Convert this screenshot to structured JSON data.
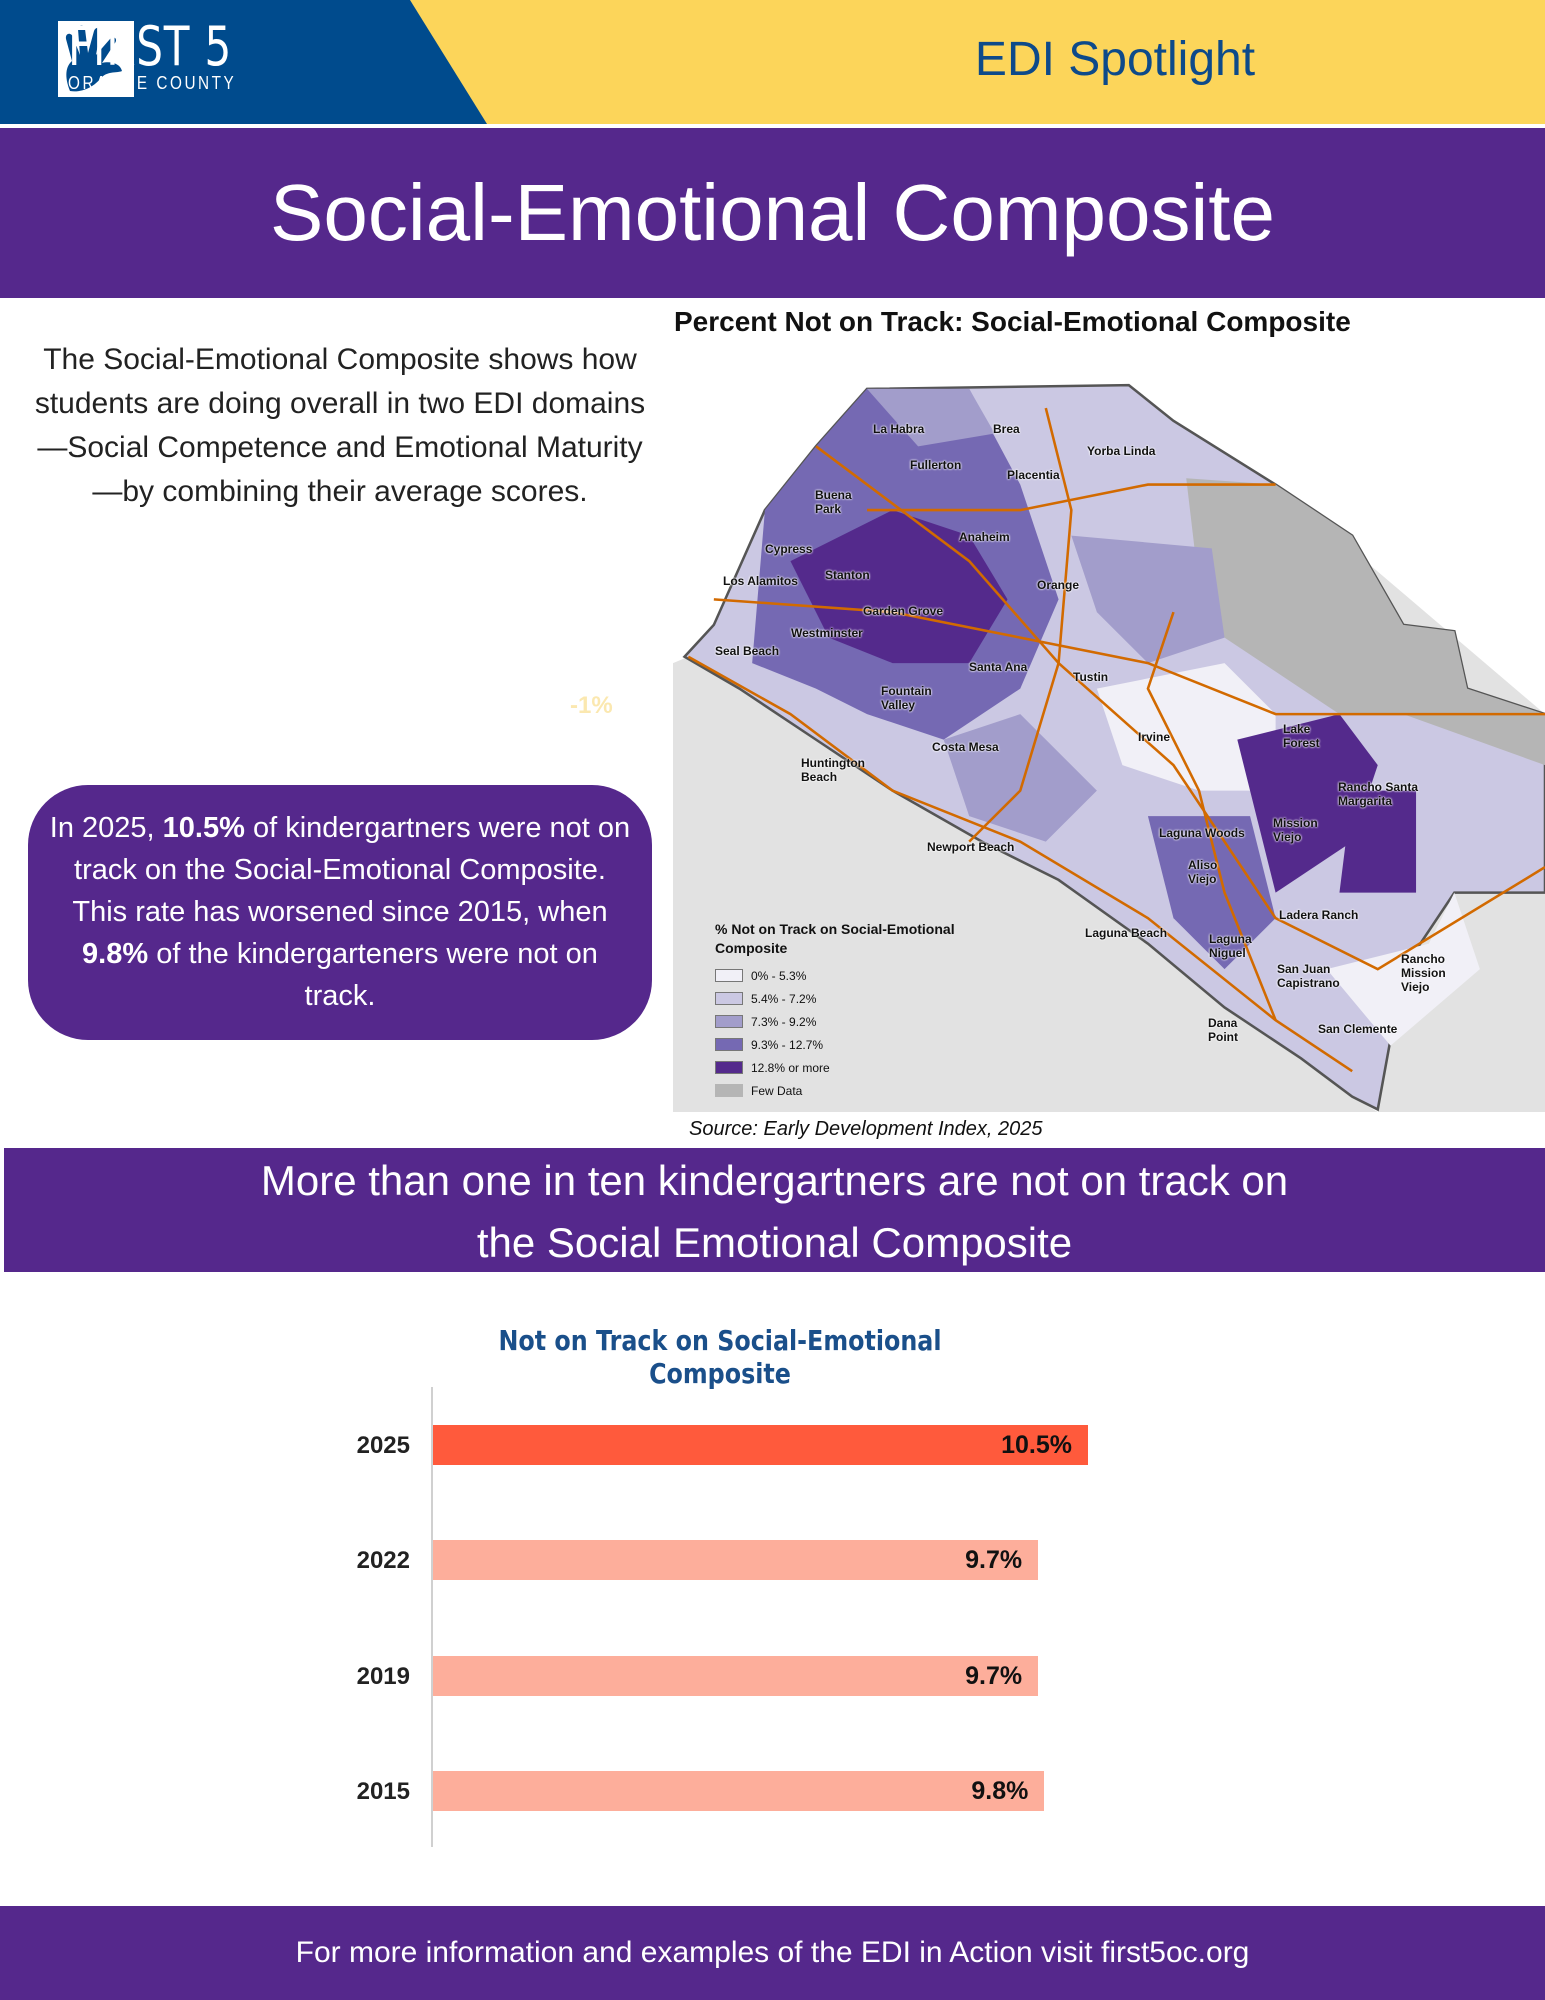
{
  "header": {
    "logo_text": "FIRST 5",
    "logo_sub": "ORANGE COUNTY",
    "spotlight": "EDI Spotlight"
  },
  "title": "Social-Emotional Composite",
  "intro": "The Social-Emotional Composite shows how students are doing overall in two EDI domains—Social Competence and Emotional Maturity—by combining their average scores.",
  "map": {
    "title": "Percent Not on Track: Social-Emotional Composite",
    "cities": [
      "La Habra",
      "Brea",
      "Yorba Linda",
      "Fullerton",
      "Placentia",
      "Buena Park",
      "Anaheim",
      "Cypress",
      "Los Alamitos",
      "Stanton",
      "Orange",
      "Garden Grove",
      "Westminster",
      "Seal Beach",
      "Santa Ana",
      "Tustin",
      "Fountain Valley",
      "Costa Mesa",
      "Irvine",
      "Lake Forest",
      "Huntington Beach",
      "Rancho Santa Margarita",
      "Newport Beach",
      "Laguna Woods",
      "Mission Viejo",
      "Aliso Viejo",
      "Ladera Ranch",
      "Laguna Beach",
      "Laguna Niguel",
      "San Juan Capistrano",
      "Rancho Mission Viejo",
      "San Clemente",
      "Dana Point"
    ],
    "legend": {
      "title": "% Not on Track on Social-Emotional Composite",
      "items": [
        {
          "label": "0% - 5.3%",
          "color": "#f1f0f7"
        },
        {
          "label": "5.4% - 7.2%",
          "color": "#cbc8e3"
        },
        {
          "label": "7.3% - 9.2%",
          "color": "#a29dcb"
        },
        {
          "label": "9.3% - 12.7%",
          "color": "#7569b3"
        },
        {
          "label": "12.8% or more",
          "color": "#542a8c"
        },
        {
          "label": "Few Data",
          "color": "#b5b5b5"
        }
      ]
    },
    "source": "Source: Early Development Index, 2025"
  },
  "faint_label": "-1%",
  "callout": {
    "pre": "In 2025, ",
    "v1": "10.5%",
    "mid": " of kindergartners were not on track on the Social-Emotional Composite. This rate has worsened since 2015, when ",
    "v2": "9.8%",
    "post": " of the kindergarteners were not on track."
  },
  "banner": {
    "line1": "More than one in ten kindergartners are not on track on",
    "line2": "the Social Emotional Composite"
  },
  "chart_data": {
    "type": "bar",
    "orientation": "horizontal",
    "title": "Not on Track on Social-Emotional Composite",
    "categories": [
      "2025",
      "2022",
      "2019",
      "2015"
    ],
    "values": [
      10.5,
      9.7,
      9.7,
      9.8
    ],
    "labels": [
      "10.5%",
      "9.7%",
      "9.7%",
      "9.8%"
    ],
    "colors": [
      "#ff5a3c",
      "#fdae9b",
      "#fdae9b",
      "#fdae9b"
    ],
    "xlim": [
      0,
      10.5
    ]
  },
  "footer": "For more information and examples of the EDI in Action visit first5oc.org"
}
